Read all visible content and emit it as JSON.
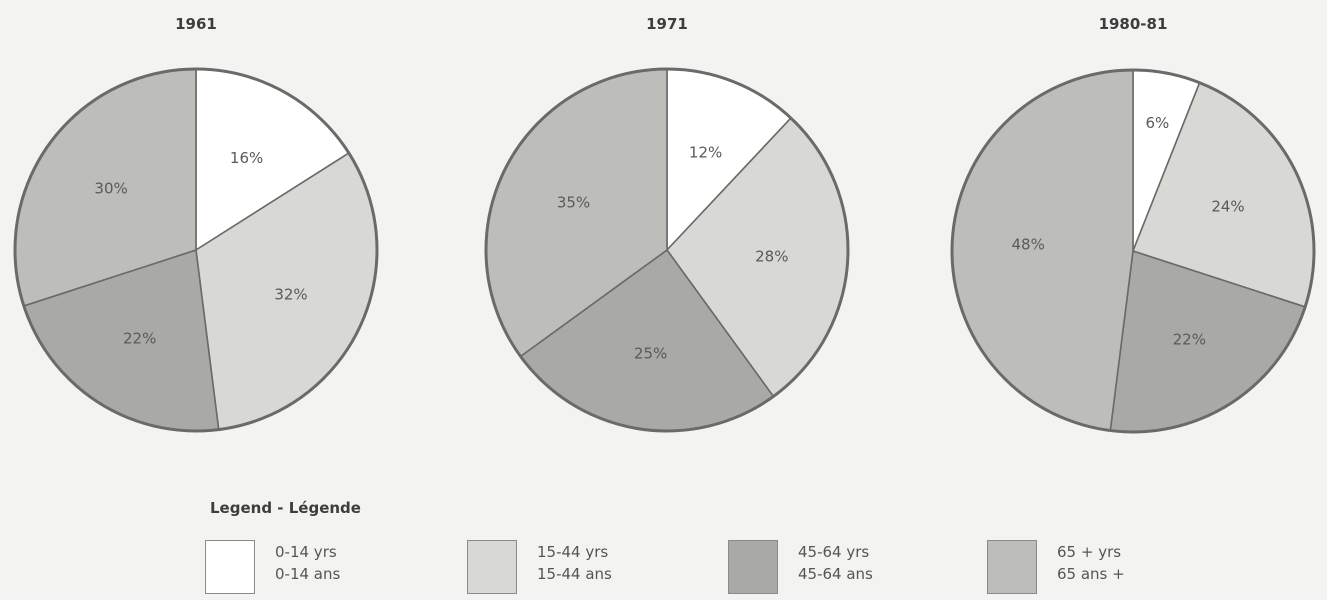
{
  "chart_data": {
    "type": "pie",
    "colors": {
      "0-14": "#ffffff",
      "15-44": "#d8d8d5",
      "45-64": "#a9a9a6",
      "65+": "#bdbdba",
      "outline": "#6a6a68"
    },
    "categories": [
      "0-14",
      "15-44",
      "45-64",
      "65+"
    ],
    "pies": [
      {
        "title": "1961",
        "values": [
          16,
          32,
          22,
          30
        ],
        "labels": [
          "16%",
          "32%",
          "22%",
          "30%"
        ]
      },
      {
        "title": "1971",
        "values": [
          12,
          28,
          25,
          35
        ],
        "labels": [
          "12%",
          "28%",
          "25%",
          "35%"
        ]
      },
      {
        "title": "1980-81",
        "values": [
          6,
          24,
          22,
          48
        ],
        "labels": [
          "6%",
          "24%",
          "22%",
          "48%"
        ]
      }
    ]
  },
  "legend": {
    "title": "Legend - Légende",
    "items": [
      {
        "key": "0-14",
        "en": "0-14 yrs",
        "fr": "0-14 ans"
      },
      {
        "key": "15-44",
        "en": "15-44 yrs",
        "fr": "15-44 ans"
      },
      {
        "key": "45-64",
        "en": "45-64 yrs",
        "fr": "45-64 ans"
      },
      {
        "key": "65+",
        "en": "65 + yrs",
        "fr": "65 ans +"
      }
    ]
  }
}
